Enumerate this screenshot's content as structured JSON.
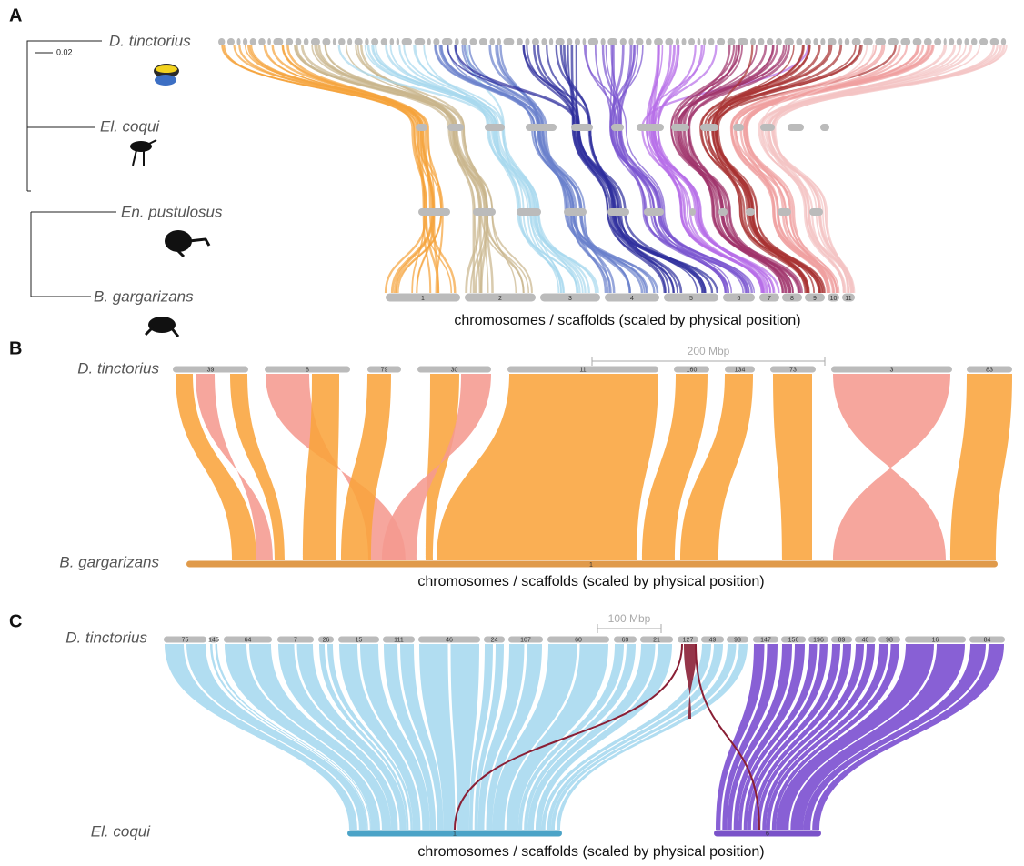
{
  "panels": [
    {
      "label": "A",
      "species": [
        "D. tinctorius",
        "El. coqui",
        "En. pustulosus",
        "B. gargarizans"
      ],
      "tree_scale": "0.02",
      "chromosomes": [
        "1",
        "2",
        "3",
        "4",
        "5",
        "6",
        "7",
        "8",
        "9",
        "10",
        "11"
      ],
      "caption": "chromosomes / scaffolds (scaled by physical position)"
    },
    {
      "label": "B",
      "scale_bar": "200 Mbp",
      "top_species": "D. tinctorius",
      "bottom_species": "B. gargarizans",
      "top_scaffolds": [
        "39",
        "8",
        "79",
        "30",
        "11",
        "160",
        "134",
        "73",
        "3",
        "83"
      ],
      "bottom_scaffolds": [
        "1"
      ],
      "caption": "chromosomes / scaffolds (scaled by physical position)"
    },
    {
      "label": "C",
      "scale_bar": "100 Mbp",
      "top_species": "D. tinctorius",
      "bottom_species": "El. coqui",
      "top_scaffolds": [
        "75",
        "145",
        "64",
        "7",
        "26",
        "15",
        "111",
        "46",
        "24",
        "107",
        "60",
        "69",
        "21",
        "127",
        "49",
        "93",
        "147",
        "156",
        "196",
        "89",
        "40",
        "98",
        "16",
        "84"
      ],
      "bottom_scaffolds": [
        "1",
        "6"
      ],
      "caption": "chromosomes / scaffolds (scaled by physical position)"
    }
  ]
}
